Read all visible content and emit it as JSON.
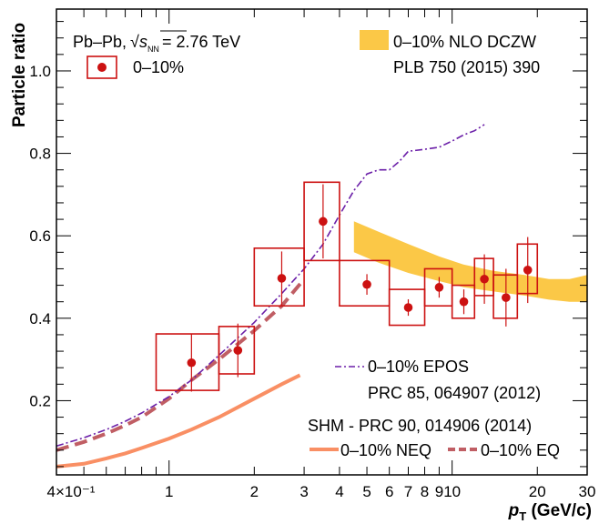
{
  "chart_data": {
    "type": "scatter",
    "xlabel_main": "p",
    "xlabel_sub": "T",
    "xlabel_unit": " (GeV/c)",
    "ylabel": "Particle ratio",
    "x_scale": "log",
    "xlim": [
      0.4,
      30
    ],
    "ylim": [
      0.02,
      1.15
    ],
    "x_ticks": [
      {
        "v": 0.4,
        "label": "4×10⁻¹"
      },
      {
        "v": 1,
        "label": "1"
      },
      {
        "v": 2,
        "label": "2"
      },
      {
        "v": 3,
        "label": "3"
      },
      {
        "v": 4,
        "label": "4"
      },
      {
        "v": 5,
        "label": "5"
      },
      {
        "v": 6,
        "label": "6"
      },
      {
        "v": 7,
        "label": "7"
      },
      {
        "v": 8,
        "label": "8"
      },
      {
        "v": 9,
        "label": "9"
      },
      {
        "v": 10,
        "label": "10"
      },
      {
        "v": 20,
        "label": "20"
      },
      {
        "v": 30,
        "label": "30"
      }
    ],
    "y_ticks": [
      {
        "v": 0.2,
        "label": "0.2"
      },
      {
        "v": 0.4,
        "label": "0.4"
      },
      {
        "v": 0.6,
        "label": "0.6"
      },
      {
        "v": 0.8,
        "label": "0.8"
      },
      {
        "v": 1.0,
        "label": "1.0"
      }
    ],
    "annotations": {
      "system": "Pb–Pb,",
      "sqrt_sym": "√",
      "s_letter": "s",
      "nn": "NN",
      "energy": "= 2.76 TeV",
      "nlo_ref": "PLB 750 (2015) 390",
      "epos_ref": "PRC 85, 064907 (2012)",
      "shm_ref": "SHM - PRC 90, 014906 (2014)"
    },
    "legend": {
      "data": "0–10%",
      "nlo": "0–10% NLO DCZW",
      "epos": "0–10% EPOS",
      "neq": "0–10% NEQ",
      "eq": "0–10% EQ"
    },
    "colors": {
      "data": "#cc1111",
      "nlo": "#fbc847",
      "epos": "#6b1fa8",
      "neq": "#f98f64",
      "eq": "#c05e64"
    },
    "data_points": [
      {
        "x": 1.2,
        "y": 0.292,
        "stat": 0.07,
        "xlo": 0.9,
        "xhi": 1.5,
        "syslo": 0.225,
        "syshi": 0.362
      },
      {
        "x": 1.75,
        "y": 0.322,
        "stat": 0.065,
        "xlo": 1.5,
        "xhi": 2.0,
        "syslo": 0.265,
        "syshi": 0.38
      },
      {
        "x": 2.5,
        "y": 0.497,
        "stat": 0.065,
        "xlo": 2.0,
        "xhi": 3.0,
        "syslo": 0.43,
        "syshi": 0.57
      },
      {
        "x": 3.5,
        "y": 0.635,
        "stat": 0.09,
        "xlo": 3.0,
        "xhi": 4.0,
        "syslo": 0.54,
        "syshi": 0.73
      },
      {
        "x": 5.0,
        "y": 0.482,
        "stat": 0.025,
        "xlo": 4.0,
        "xhi": 6.0,
        "syslo": 0.43,
        "syshi": 0.54
      },
      {
        "x": 7.0,
        "y": 0.426,
        "stat": 0.02,
        "xlo": 6.0,
        "xhi": 8.0,
        "syslo": 0.383,
        "syshi": 0.47
      },
      {
        "x": 9.0,
        "y": 0.475,
        "stat": 0.025,
        "xlo": 8.0,
        "xhi": 10.0,
        "syslo": 0.43,
        "syshi": 0.52
      },
      {
        "x": 11.0,
        "y": 0.44,
        "stat": 0.03,
        "xlo": 10.0,
        "xhi": 12.0,
        "syslo": 0.4,
        "syshi": 0.48
      },
      {
        "x": 13.0,
        "y": 0.495,
        "stat": 0.06,
        "xlo": 12.0,
        "xhi": 14.0,
        "syslo": 0.455,
        "syshi": 0.545
      },
      {
        "x": 15.5,
        "y": 0.45,
        "stat": 0.07,
        "xlo": 14.0,
        "xhi": 17.0,
        "syslo": 0.4,
        "syshi": 0.505
      },
      {
        "x": 18.5,
        "y": 0.517,
        "stat": 0.08,
        "xlo": 17.0,
        "xhi": 20.0,
        "syslo": 0.46,
        "syshi": 0.58
      }
    ],
    "nlo_band": {
      "x": [
        4.5,
        5.5,
        7.0,
        9.0,
        11.0,
        14.0,
        18.0,
        22.0,
        26.0,
        30.0
      ],
      "lo": [
        0.56,
        0.535,
        0.51,
        0.49,
        0.475,
        0.465,
        0.455,
        0.445,
        0.44,
        0.44
      ],
      "hi": [
        0.635,
        0.61,
        0.58,
        0.55,
        0.53,
        0.515,
        0.505,
        0.495,
        0.495,
        0.505
      ]
    },
    "epos": {
      "x": [
        0.4,
        0.5,
        0.6,
        0.7,
        0.8,
        1.0,
        1.2,
        1.5,
        2.0,
        2.5,
        3.0,
        3.5,
        4.0,
        4.5,
        5.0,
        5.5,
        6.0,
        6.5,
        7.0,
        8.0,
        9.0,
        10.0,
        11.0,
        12.0,
        13.0
      ],
      "y": [
        0.09,
        0.11,
        0.13,
        0.15,
        0.17,
        0.21,
        0.25,
        0.31,
        0.39,
        0.46,
        0.52,
        0.58,
        0.65,
        0.71,
        0.75,
        0.76,
        0.76,
        0.78,
        0.805,
        0.81,
        0.815,
        0.83,
        0.845,
        0.855,
        0.87
      ]
    },
    "eq": {
      "x": [
        0.4,
        0.5,
        0.6,
        0.7,
        0.8,
        1.0,
        1.2,
        1.5,
        2.0,
        2.5,
        3.0
      ],
      "y": [
        0.08,
        0.1,
        0.12,
        0.14,
        0.16,
        0.205,
        0.25,
        0.3,
        0.37,
        0.43,
        0.495
      ]
    },
    "neq": {
      "x": [
        0.4,
        0.5,
        0.6,
        0.7,
        0.8,
        1.0,
        1.2,
        1.5,
        2.0,
        2.5,
        2.9
      ],
      "y": [
        0.04,
        0.047,
        0.06,
        0.072,
        0.085,
        0.108,
        0.13,
        0.16,
        0.205,
        0.24,
        0.262
      ]
    }
  }
}
